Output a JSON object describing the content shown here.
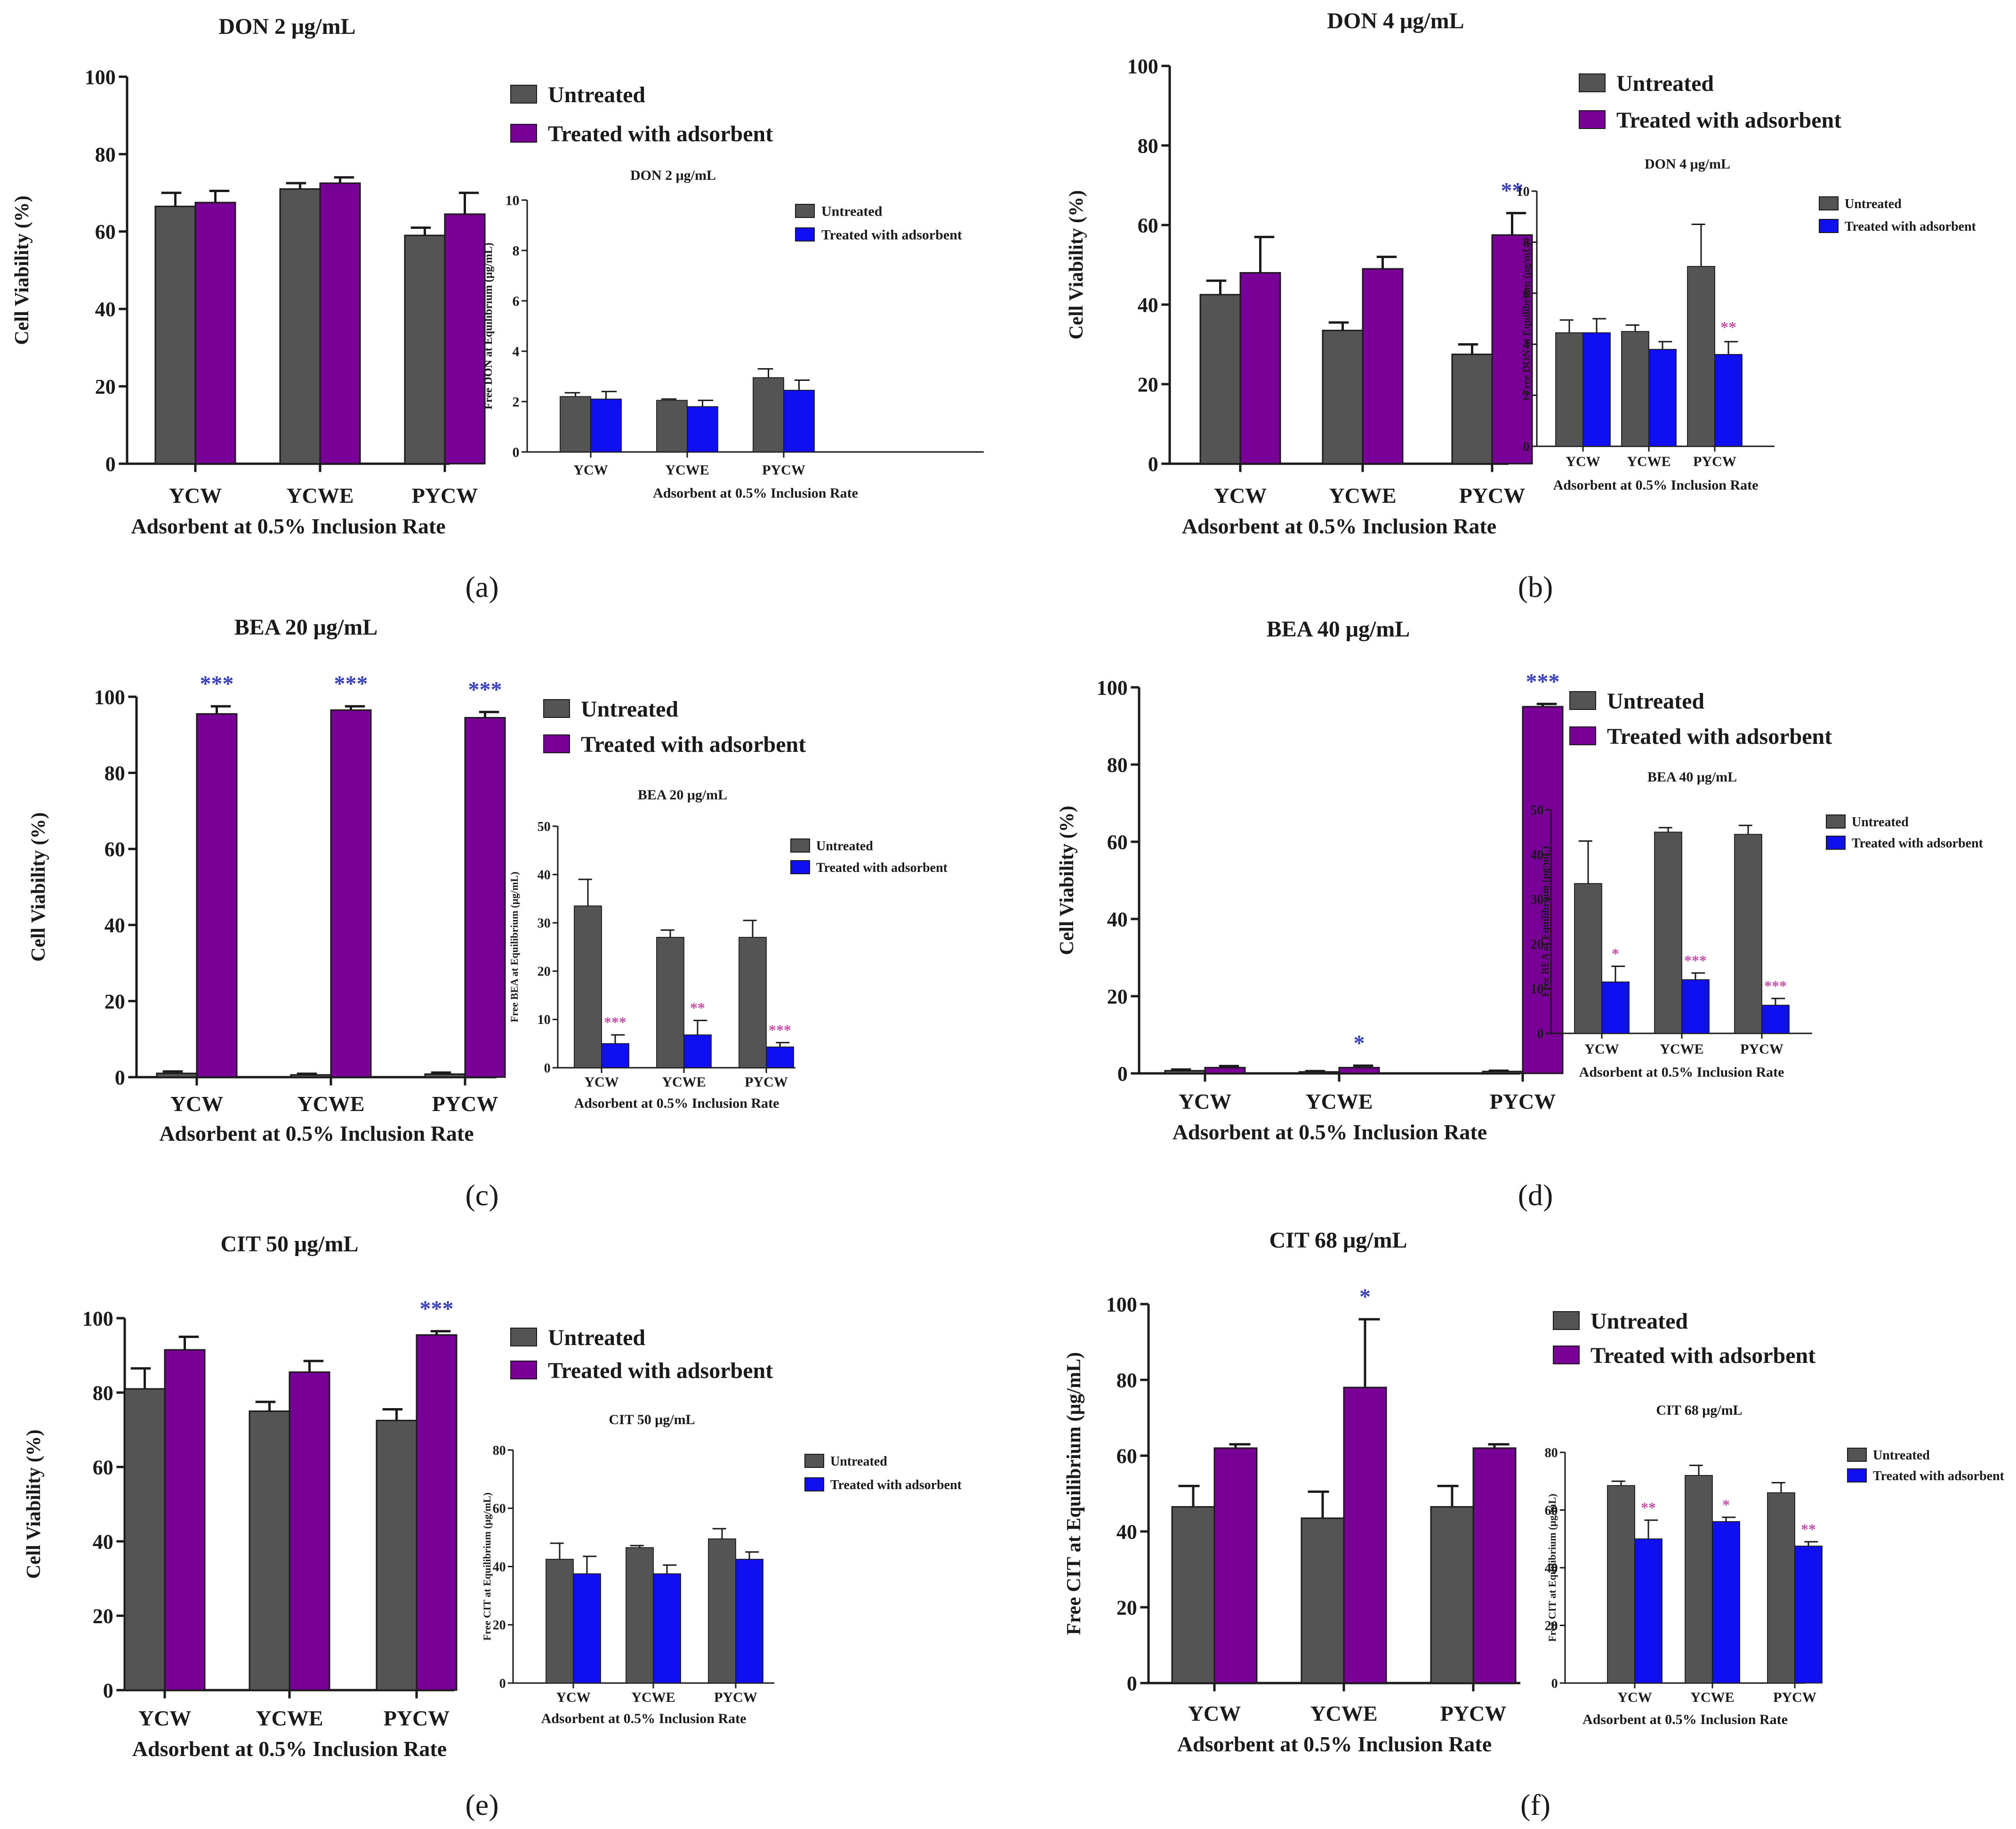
{
  "colors": {
    "untreated": "#545454",
    "treated_main": "#790096",
    "treated_inset": "#0f0ff2",
    "sig_main": "#3a40b8",
    "sig_inset": "#c050a8",
    "axis": "#1a1a1a"
  },
  "panel_labels": [
    "(a)",
    "(b)",
    "(c)",
    "(d)",
    "(e)",
    "(f)"
  ],
  "chart_data": [
    {
      "id": "a-main",
      "type": "bar",
      "title": "DON 2 μg/mL",
      "xlabel": "Adsorbent at 0.5% Inclusion Rate",
      "ylabel": "Cell Viability (%)",
      "categories": [
        "YCW",
        "YCWE",
        "PYCW"
      ],
      "ylim": [
        0,
        100
      ],
      "yticks": [
        0,
        20,
        40,
        60,
        80,
        100
      ],
      "tick_labels": [
        "0",
        "20",
        "40",
        "60",
        "80",
        "100"
      ],
      "legend": [
        "Untreated",
        "Treated with adsorbent"
      ],
      "legend_position": "top-right",
      "series": [
        {
          "name": "Untreated",
          "values": [
            66.5,
            71,
            59
          ],
          "errors": [
            3.5,
            1.5,
            2
          ]
        },
        {
          "name": "Treated with adsorbent",
          "values": [
            67.5,
            72.5,
            64.5
          ],
          "errors": [
            3,
            1.5,
            5.5
          ]
        }
      ],
      "annotations": []
    },
    {
      "id": "a-inset",
      "type": "bar",
      "title": "DON 2 μg/mL",
      "xlabel": "Adsorbent at 0.5% Inclusion Rate",
      "ylabel": "Free DON at Equilibrium (μg/mL)",
      "categories": [
        "YCW",
        "YCWE",
        "PYCW"
      ],
      "ylim": [
        0,
        10
      ],
      "yticks": [
        0,
        2,
        4,
        6,
        8,
        10
      ],
      "tick_labels": [
        "0",
        "2",
        "4",
        "6",
        "8",
        "10"
      ],
      "legend": [
        "Untreated",
        "Treated with adsorbent"
      ],
      "legend_position": "top-right",
      "series": [
        {
          "name": "Untreated",
          "values": [
            2.2,
            2.05,
            2.95
          ],
          "errors": [
            0.15,
            0.05,
            0.35
          ]
        },
        {
          "name": "Treated with adsorbent",
          "values": [
            2.1,
            1.8,
            2.45
          ],
          "errors": [
            0.3,
            0.25,
            0.4
          ]
        }
      ],
      "annotations": []
    },
    {
      "id": "b-main",
      "type": "bar",
      "title": "DON 4 μg/mL",
      "xlabel": "Adsorbent at 0.5% Inclusion Rate",
      "ylabel": "Cell Viability (%)",
      "categories": [
        "YCW",
        "YCWE",
        "PYCW"
      ],
      "ylim": [
        0,
        100
      ],
      "yticks": [
        0,
        20,
        40,
        60,
        80,
        100
      ],
      "tick_labels": [
        "0",
        "20",
        "40",
        "60",
        "80",
        "100"
      ],
      "legend": [
        "Untreated",
        "Treated with adsorbent"
      ],
      "legend_position": "top-right",
      "series": [
        {
          "name": "Untreated",
          "values": [
            42.5,
            33.5,
            27.5
          ],
          "errors": [
            3.5,
            2,
            2.5
          ]
        },
        {
          "name": "Treated with adsorbent",
          "values": [
            48,
            49,
            57.5
          ],
          "errors": [
            9,
            3,
            5.5
          ]
        }
      ],
      "annotations": [
        {
          "category": 2,
          "series": 1,
          "text": "**"
        }
      ]
    },
    {
      "id": "b-inset",
      "type": "bar",
      "title": "DON 4 μg/mL",
      "xlabel": "Adsorbent at 0.5% Inclusion Rate",
      "ylabel": "Free DON at Equilibrium (μg/mL)",
      "categories": [
        "YCW",
        "YCWE",
        "PYCW"
      ],
      "ylim": [
        0,
        10
      ],
      "yticks": [
        0,
        2,
        4,
        6,
        8,
        10
      ],
      "tick_labels": [
        "0",
        "2",
        "4",
        "6",
        "8",
        "10"
      ],
      "legend": [
        "Untreated",
        "Treated with adsorbent"
      ],
      "legend_position": "top-right",
      "series": [
        {
          "name": "Untreated",
          "values": [
            4.45,
            4.5,
            7.05
          ],
          "errors": [
            0.5,
            0.25,
            1.65
          ]
        },
        {
          "name": "Treated with adsorbent",
          "values": [
            4.45,
            3.8,
            3.6
          ],
          "errors": [
            0.55,
            0.3,
            0.5
          ]
        }
      ],
      "annotations": [
        {
          "category": 2,
          "series": 1,
          "text": "**"
        }
      ]
    },
    {
      "id": "c-main",
      "type": "bar",
      "title": "BEA 20 μg/mL",
      "xlabel": "Adsorbent at 0.5% Inclusion Rate",
      "ylabel": "Cell Viability (%)",
      "categories": [
        "YCW",
        "YCWE",
        "PYCW"
      ],
      "ylim": [
        0,
        100
      ],
      "yticks": [
        0,
        20,
        40,
        60,
        80,
        100
      ],
      "tick_labels": [
        "0",
        "20",
        "40",
        "60",
        "80",
        "100"
      ],
      "legend": [
        "Untreated",
        "Treated with adsorbent"
      ],
      "legend_position": "top-right",
      "series": [
        {
          "name": "Untreated",
          "values": [
            1,
            0.6,
            0.8
          ],
          "errors": [
            0.5,
            0.3,
            0.4
          ]
        },
        {
          "name": "Treated with adsorbent",
          "values": [
            95.5,
            96.5,
            94.5
          ],
          "errors": [
            2,
            1,
            1.5
          ]
        }
      ],
      "annotations": [
        {
          "category": 0,
          "series": 1,
          "text": "***"
        },
        {
          "category": 1,
          "series": 1,
          "text": "***"
        },
        {
          "category": 2,
          "series": 1,
          "text": "***"
        }
      ]
    },
    {
      "id": "c-inset",
      "type": "bar",
      "title": "BEA 20 μg/mL",
      "xlabel": "Adsorbent at 0.5% Inclusion Rate",
      "ylabel": "Free BEA at Equilibrium (μg/mL)",
      "categories": [
        "YCW",
        "YCWE",
        "PYCW"
      ],
      "ylim": [
        0,
        50
      ],
      "yticks": [
        0,
        10,
        20,
        30,
        40,
        50
      ],
      "tick_labels": [
        "0",
        "10",
        "20",
        "30",
        "40",
        "50"
      ],
      "legend": [
        "Untreated",
        "Treated with adsorbent"
      ],
      "legend_position": "top-right",
      "series": [
        {
          "name": "Untreated",
          "values": [
            33.5,
            27,
            27
          ],
          "errors": [
            5.5,
            1.5,
            3.5
          ]
        },
        {
          "name": "Treated with adsorbent",
          "values": [
            5,
            6.8,
            4.3
          ],
          "errors": [
            1.8,
            3,
            0.9
          ]
        }
      ],
      "annotations": [
        {
          "category": 0,
          "series": 1,
          "text": "***"
        },
        {
          "category": 1,
          "series": 1,
          "text": "**"
        },
        {
          "category": 2,
          "series": 1,
          "text": "***"
        }
      ]
    },
    {
      "id": "d-main",
      "type": "bar",
      "title": "BEA 40 μg/mL",
      "xlabel": "Adsorbent at 0.5% Inclusion Rate",
      "ylabel": "Cell Viability (%)",
      "categories": [
        "YCW",
        "YCWE",
        "PYCW"
      ],
      "ylim": [
        0,
        100
      ],
      "yticks": [
        0,
        20,
        40,
        60,
        80,
        100
      ],
      "tick_labels": [
        "0",
        "20",
        "40",
        "60",
        "80",
        "100"
      ],
      "legend": [
        "Untreated",
        "Treated with adsorbent"
      ],
      "legend_position": "top-right",
      "series": [
        {
          "name": "Untreated",
          "values": [
            0.7,
            0.4,
            0.5
          ],
          "errors": [
            0.3,
            0.2,
            0.2
          ]
        },
        {
          "name": "Treated with adsorbent",
          "values": [
            1.5,
            1.5,
            95
          ],
          "errors": [
            0.4,
            0.5,
            0.7
          ]
        }
      ],
      "annotations": [
        {
          "category": 1,
          "series": 1,
          "text": "*"
        },
        {
          "category": 2,
          "series": 1,
          "text": "***"
        }
      ]
    },
    {
      "id": "d-inset",
      "type": "bar",
      "title": "BEA 40 μg/mL",
      "xlabel": "Adsorbent at 0.5% Inclusion Rate",
      "ylabel": "Free BEA at Equilibrium (μg/mL)",
      "categories": [
        "YCW",
        "YCWE",
        "PYCW"
      ],
      "ylim": [
        0,
        50
      ],
      "yticks": [
        0,
        10,
        20,
        30,
        40,
        50
      ],
      "tick_labels": [
        "0",
        "10",
        "20",
        "30",
        "40",
        "50"
      ],
      "legend": [
        "Untreated",
        "Treated with adsorbent"
      ],
      "legend_position": "top-right",
      "series": [
        {
          "name": "Untreated",
          "values": [
            33.5,
            45,
            44.5
          ],
          "errors": [
            9.5,
            1,
            2
          ]
        },
        {
          "name": "Treated with adsorbent",
          "values": [
            11.5,
            12,
            6.3
          ],
          "errors": [
            3.5,
            1.5,
            1.5
          ]
        }
      ],
      "annotations": [
        {
          "category": 0,
          "series": 1,
          "text": "*"
        },
        {
          "category": 1,
          "series": 1,
          "text": "***"
        },
        {
          "category": 2,
          "series": 1,
          "text": "***"
        }
      ]
    },
    {
      "id": "e-main",
      "type": "bar",
      "title": "CIT 50 μg/mL",
      "xlabel": "Adsorbent at 0.5% Inclusion Rate",
      "ylabel": "Cell Viability (%)",
      "categories": [
        "YCW",
        "YCWE",
        "PYCW"
      ],
      "ylim": [
        0,
        100
      ],
      "yticks": [
        0,
        20,
        40,
        60,
        80,
        100
      ],
      "tick_labels": [
        "0",
        "20",
        "40",
        "60",
        "80",
        "100"
      ],
      "legend": [
        "Untreated",
        "Treated with adsorbent"
      ],
      "legend_position": "top-right",
      "series": [
        {
          "name": "Untreated",
          "values": [
            81,
            75,
            72.5
          ],
          "errors": [
            5.5,
            2.5,
            3
          ]
        },
        {
          "name": "Treated with adsorbent",
          "values": [
            91.5,
            85.5,
            95.5
          ],
          "errors": [
            3.5,
            3,
            1
          ]
        }
      ],
      "annotations": [
        {
          "category": 2,
          "series": 1,
          "text": "***"
        }
      ]
    },
    {
      "id": "e-inset",
      "type": "bar",
      "title": "CIT 50 μg/mL",
      "xlabel": "Adsorbent at 0.5% Inclusion Rate",
      "ylabel": "Free CIT at Equilibrium (μg/mL)",
      "categories": [
        "YCW",
        "YCWE",
        "PYCW"
      ],
      "ylim": [
        0,
        80
      ],
      "yticks": [
        0,
        20,
        40,
        60,
        80
      ],
      "tick_labels": [
        "0",
        "20",
        "40",
        "60",
        "80"
      ],
      "legend": [
        "Untreated",
        "Treated with adsorbent"
      ],
      "legend_position": "top-right",
      "series": [
        {
          "name": "Untreated",
          "values": [
            42.5,
            46.5,
            49.5
          ],
          "errors": [
            5.5,
            0.7,
            3.5
          ]
        },
        {
          "name": "Treated with adsorbent",
          "values": [
            37.5,
            37.5,
            42.5
          ],
          "errors": [
            6,
            3,
            2.5
          ]
        }
      ],
      "annotations": []
    },
    {
      "id": "f-main",
      "type": "bar",
      "title": "CIT 68 μg/mL",
      "xlabel": "Adsorbent at 0.5% Inclusion Rate",
      "ylabel": "Free CIT at Equilibrium (μg/mL)",
      "categories": [
        "YCW",
        "YCWE",
        "PYCW"
      ],
      "ylim": [
        0,
        100
      ],
      "yticks": [
        0,
        20,
        40,
        60,
        80,
        100
      ],
      "tick_labels": [
        "0",
        "20",
        "40",
        "60",
        "80",
        "100"
      ],
      "legend": [
        "Untreated",
        "Treated with adsorbent"
      ],
      "legend_position": "top-right",
      "series": [
        {
          "name": "Untreated",
          "values": [
            46.5,
            43.5,
            46.5
          ],
          "errors": [
            5.5,
            7,
            5.5
          ]
        },
        {
          "name": "Treated with adsorbent",
          "values": [
            62,
            78,
            62
          ],
          "errors": [
            1,
            18,
            1
          ]
        }
      ],
      "annotations": [
        {
          "category": 1,
          "series": 1,
          "text": "*"
        }
      ]
    },
    {
      "id": "f-inset",
      "type": "bar",
      "title": "CIT 68 μg/mL",
      "xlabel": "Adsorbent at 0.5% Inclusion Rate",
      "ylabel": "Free CIT at Equilibrium (μg/mL)",
      "categories": [
        "YCW",
        "YCWE",
        "PYCW"
      ],
      "ylim": [
        0,
        80
      ],
      "yticks": [
        0,
        20,
        40,
        60,
        80
      ],
      "tick_labels": [
        "0",
        "20",
        "40",
        "60",
        "80"
      ],
      "legend": [
        "Untreated",
        "Treated with adsorbent"
      ],
      "legend_position": "top-right",
      "series": [
        {
          "name": "Untreated",
          "values": [
            68.5,
            72,
            66
          ],
          "errors": [
            1.5,
            3.5,
            3.5
          ]
        },
        {
          "name": "Treated with adsorbent",
          "values": [
            50,
            56,
            47.5
          ],
          "errors": [
            6.5,
            1.5,
            1.5
          ]
        }
      ],
      "annotations": [
        {
          "category": 0,
          "series": 1,
          "text": "**"
        },
        {
          "category": 1,
          "series": 1,
          "text": "*"
        },
        {
          "category": 2,
          "series": 1,
          "text": "**"
        }
      ]
    }
  ]
}
